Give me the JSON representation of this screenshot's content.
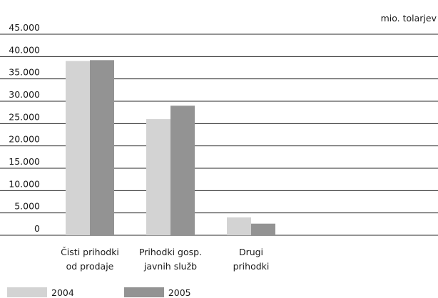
{
  "chart_data": {
    "type": "bar",
    "unit": "mio. tolarjev",
    "categories": [
      [
        "Čisti prihodki",
        "od prodaje"
      ],
      [
        "Prihodki gosp.",
        "javnih služb"
      ],
      [
        "Drugi",
        "prihodki"
      ]
    ],
    "series": [
      {
        "name": "2004",
        "values": [
          39000,
          26000,
          4000
        ],
        "color": "#d3d3d3"
      },
      {
        "name": "2005",
        "values": [
          39200,
          29000,
          2600
        ],
        "color": "#939393"
      }
    ],
    "yticks": [
      "0",
      "5.000",
      "10.000",
      "15.000",
      "20.000",
      "25.000",
      "30.000",
      "35.000",
      "40.000",
      "45.000"
    ],
    "ylim": [
      0,
      45000
    ],
    "grid": true,
    "legend": "bottom-left"
  }
}
